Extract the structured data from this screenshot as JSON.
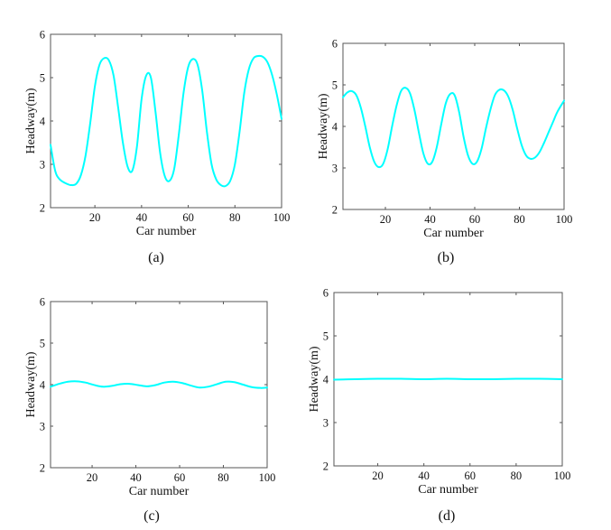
{
  "figure": {
    "line_color": "#00FFFF"
  },
  "chart_data": [
    {
      "type": "line",
      "caption": "(a)",
      "xlabel": "Car number",
      "ylabel": "Headway(m)",
      "xlim": [
        1,
        100
      ],
      "ylim": [
        2,
        6
      ],
      "xticks": [
        20,
        40,
        60,
        80,
        100
      ],
      "yticks": [
        2,
        3,
        4,
        5,
        6
      ],
      "grid": false,
      "series": [
        {
          "x": [
            1,
            3,
            5,
            8,
            10,
            12,
            14,
            16,
            18,
            20,
            22,
            24,
            26,
            28,
            30,
            32,
            34,
            36,
            38,
            40,
            42,
            44,
            46,
            48,
            50,
            52,
            54,
            56,
            58,
            60,
            62,
            64,
            66,
            68,
            70,
            72,
            74,
            76,
            78,
            80,
            82,
            84,
            86,
            88,
            90,
            92,
            94,
            96,
            98,
            100
          ],
          "y": [
            3.45,
            2.85,
            2.65,
            2.55,
            2.52,
            2.55,
            2.75,
            3.2,
            3.95,
            4.8,
            5.3,
            5.45,
            5.4,
            5.05,
            4.3,
            3.5,
            2.95,
            2.85,
            3.4,
            4.5,
            5.05,
            5.0,
            4.2,
            3.25,
            2.72,
            2.62,
            2.9,
            3.7,
            4.65,
            5.25,
            5.43,
            5.3,
            4.7,
            3.75,
            3.0,
            2.65,
            2.52,
            2.5,
            2.62,
            3.0,
            3.75,
            4.65,
            5.2,
            5.45,
            5.5,
            5.48,
            5.35,
            5.05,
            4.6,
            4.05
          ]
        }
      ]
    },
    {
      "type": "line",
      "caption": "(b)",
      "xlabel": "Car number",
      "ylabel": "Headway(m)",
      "xlim": [
        1,
        100
      ],
      "ylim": [
        2,
        6
      ],
      "xticks": [
        20,
        40,
        60,
        80,
        100
      ],
      "yticks": [
        2,
        3,
        4,
        5,
        6
      ],
      "grid": false,
      "series": [
        {
          "x": [
            1,
            3,
            5,
            7,
            9,
            11,
            13,
            15,
            17,
            19,
            21,
            23,
            25,
            27,
            29,
            31,
            33,
            35,
            37,
            39,
            41,
            43,
            45,
            47,
            49,
            51,
            53,
            55,
            57,
            59,
            61,
            63,
            65,
            67,
            69,
            71,
            73,
            75,
            77,
            79,
            81,
            83,
            85,
            87,
            89,
            91,
            93,
            95,
            97,
            100
          ],
          "y": [
            4.7,
            4.82,
            4.85,
            4.75,
            4.45,
            4.0,
            3.5,
            3.15,
            3.02,
            3.1,
            3.45,
            4.0,
            4.5,
            4.85,
            4.93,
            4.8,
            4.4,
            3.85,
            3.35,
            3.1,
            3.15,
            3.5,
            4.05,
            4.55,
            4.78,
            4.75,
            4.35,
            3.75,
            3.3,
            3.1,
            3.15,
            3.45,
            3.95,
            4.4,
            4.75,
            4.88,
            4.87,
            4.72,
            4.4,
            3.95,
            3.55,
            3.3,
            3.22,
            3.25,
            3.38,
            3.6,
            3.85,
            4.1,
            4.35,
            4.62
          ]
        }
      ]
    },
    {
      "type": "line",
      "caption": "(c)",
      "xlabel": "Car number",
      "ylabel": "Headway(m)",
      "xlim": [
        1,
        100
      ],
      "ylim": [
        2,
        6
      ],
      "xticks": [
        20,
        40,
        60,
        80,
        100
      ],
      "yticks": [
        2,
        3,
        4,
        5,
        6
      ],
      "grid": false,
      "series": [
        {
          "x": [
            1,
            5,
            9,
            13,
            17,
            21,
            25,
            29,
            33,
            37,
            41,
            45,
            49,
            53,
            57,
            61,
            65,
            69,
            73,
            77,
            81,
            85,
            89,
            93,
            97,
            100
          ],
          "y": [
            3.95,
            4.02,
            4.07,
            4.08,
            4.05,
            3.99,
            3.95,
            3.97,
            4.01,
            4.02,
            3.99,
            3.96,
            3.99,
            4.05,
            4.07,
            4.04,
            3.98,
            3.93,
            3.95,
            4.01,
            4.07,
            4.06,
            4.0,
            3.94,
            3.92,
            3.93
          ]
        }
      ]
    },
    {
      "type": "line",
      "caption": "(d)",
      "xlabel": "Car number",
      "ylabel": "Headway(m)",
      "xlim": [
        1,
        100
      ],
      "ylim": [
        2,
        6
      ],
      "xticks": [
        20,
        40,
        60,
        80,
        100
      ],
      "yticks": [
        2,
        3,
        4,
        5,
        6
      ],
      "grid": false,
      "series": [
        {
          "x": [
            1,
            10,
            20,
            30,
            40,
            50,
            60,
            70,
            80,
            90,
            100
          ],
          "y": [
            3.99,
            4.0,
            4.01,
            4.01,
            4.0,
            4.01,
            4.0,
            4.0,
            4.01,
            4.01,
            4.0
          ]
        }
      ]
    }
  ]
}
